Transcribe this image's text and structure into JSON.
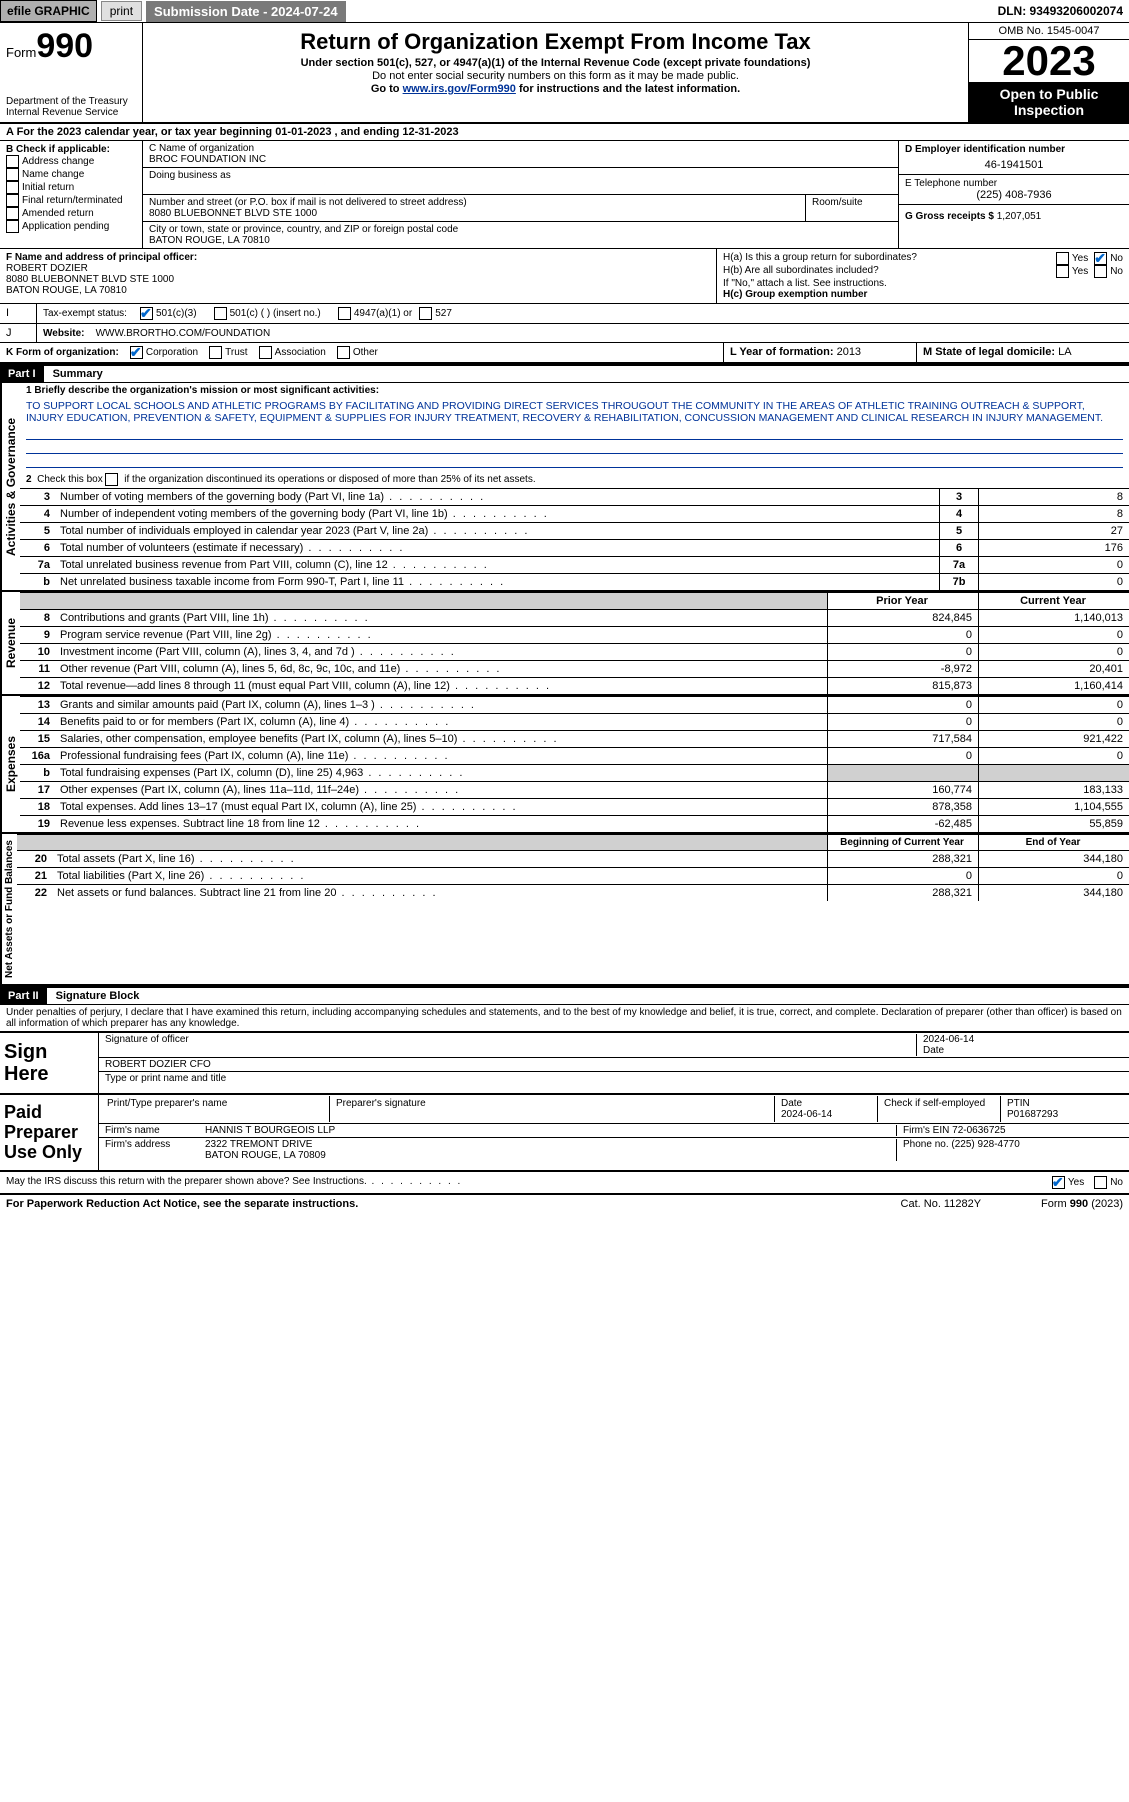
{
  "topbar": {
    "efile": "efile GRAPHIC",
    "print": "print",
    "subdate_label": "Submission Date - 2024-07-24",
    "dln": "DLN: 93493206002074"
  },
  "header": {
    "form_label": "Form",
    "form_num": "990",
    "dept": "Department of the Treasury",
    "irs": "Internal Revenue Service",
    "title": "Return of Organization Exempt From Income Tax",
    "sub1": "Under section 501(c), 527, or 4947(a)(1) of the Internal Revenue Code (except private foundations)",
    "sub2": "Do not enter social security numbers on this form as it may be made public.",
    "goto_pre": "Go to ",
    "goto_link": "www.irs.gov/Form990",
    "goto_post": " for instructions and the latest information.",
    "omb": "OMB No. 1545-0047",
    "year": "2023",
    "open": "Open to Public Inspection"
  },
  "rowA": "A For the 2023 calendar year, or tax year beginning 01-01-2023   , and ending 12-31-2023",
  "boxB": {
    "label": "B Check if applicable:",
    "items": [
      "Address change",
      "Name change",
      "Initial return",
      "Final return/terminated",
      "Amended return",
      "Application pending"
    ]
  },
  "boxC": {
    "label": "C Name of organization",
    "name": "BROC FOUNDATION INC",
    "dba_label": "Doing business as",
    "addr_label": "Number and street (or P.O. box if mail is not delivered to street address)",
    "room_label": "Room/suite",
    "addr": "8080 BLUEBONNET BLVD STE 1000",
    "city_label": "City or town, state or province, country, and ZIP or foreign postal code",
    "city": "BATON ROUGE, LA  70810"
  },
  "boxD": {
    "label": "D Employer identification number",
    "value": "46-1941501"
  },
  "boxE": {
    "label": "E Telephone number",
    "value": "(225) 408-7936"
  },
  "boxG": {
    "label": "G Gross receipts $",
    "value": "1,207,051"
  },
  "boxF": {
    "label": "F  Name and address of principal officer:",
    "name": "ROBERT DOZIER",
    "addr1": "8080 BLUEBONNET BLVD STE 1000",
    "addr2": "BATON ROUGE, LA  70810"
  },
  "boxH": {
    "ha": "H(a)  Is this a group return for subordinates?",
    "hb": "H(b)  Are all subordinates included?",
    "hb_note": "If \"No,\" attach a list. See instructions.",
    "hc": "H(c)  Group exemption number",
    "yes": "Yes",
    "no": "No"
  },
  "boxI": {
    "label": "Tax-exempt status:",
    "opts": [
      "501(c)(3)",
      "501(c) (  ) (insert no.)",
      "4947(a)(1) or",
      "527"
    ]
  },
  "boxJ": {
    "label": "Website:",
    "value": "WWW.BRORTHO.COM/FOUNDATION"
  },
  "boxK": {
    "label": "K Form of organization:",
    "opts": [
      "Corporation",
      "Trust",
      "Association",
      "Other"
    ]
  },
  "boxL": {
    "label": "L Year of formation:",
    "value": "2013"
  },
  "boxM": {
    "label": "M State of legal domicile:",
    "value": "LA"
  },
  "part1": {
    "hdr": "Part I",
    "title": "Summary"
  },
  "summary": {
    "q1_label": "1   Briefly describe the organization's mission or most significant activities:",
    "mission": "TO SUPPORT LOCAL SCHOOLS AND ATHLETIC PROGRAMS BY FACILITATING AND PROVIDING DIRECT SERVICES THROUGOUT THE COMMUNITY IN THE AREAS OF ATHLETIC TRAINING OUTREACH & SUPPORT, INJURY EDUCATION, PREVENTION & SAFETY, EQUIPMENT & SUPPLIES FOR INJURY TREATMENT, RECOVERY & REHABILITATION, CONCUSSION MANAGEMENT AND CLINICAL RESEARCH IN INJURY MANAGEMENT.",
    "q2": "2    Check this box      if the organization discontinued its operations or disposed of more than 25% of its net assets.",
    "lines_gov": [
      {
        "n": "3",
        "t": "Number of voting members of the governing body (Part VI, line 1a)",
        "b": "3",
        "v": "8"
      },
      {
        "n": "4",
        "t": "Number of independent voting members of the governing body (Part VI, line 1b)",
        "b": "4",
        "v": "8"
      },
      {
        "n": "5",
        "t": "Total number of individuals employed in calendar year 2023 (Part V, line 2a)",
        "b": "5",
        "v": "27"
      },
      {
        "n": "6",
        "t": "Total number of volunteers (estimate if necessary)",
        "b": "6",
        "v": "176"
      },
      {
        "n": "7a",
        "t": "Total unrelated business revenue from Part VIII, column (C), line 12",
        "b": "7a",
        "v": "0"
      },
      {
        "n": "b",
        "t": "Net unrelated business taxable income from Form 990-T, Part I, line 11",
        "b": "7b",
        "v": "0"
      }
    ],
    "col_prior": "Prior Year",
    "col_curr": "Current Year",
    "lines_rev": [
      {
        "n": "8",
        "t": "Contributions and grants (Part VIII, line 1h)",
        "p": "824,845",
        "c": "1,140,013"
      },
      {
        "n": "9",
        "t": "Program service revenue (Part VIII, line 2g)",
        "p": "0",
        "c": "0"
      },
      {
        "n": "10",
        "t": "Investment income (Part VIII, column (A), lines 3, 4, and 7d )",
        "p": "0",
        "c": "0"
      },
      {
        "n": "11",
        "t": "Other revenue (Part VIII, column (A), lines 5, 6d, 8c, 9c, 10c, and 11e)",
        "p": "-8,972",
        "c": "20,401"
      },
      {
        "n": "12",
        "t": "Total revenue—add lines 8 through 11 (must equal Part VIII, column (A), line 12)",
        "p": "815,873",
        "c": "1,160,414"
      }
    ],
    "lines_exp": [
      {
        "n": "13",
        "t": "Grants and similar amounts paid (Part IX, column (A), lines 1–3 )",
        "p": "0",
        "c": "0"
      },
      {
        "n": "14",
        "t": "Benefits paid to or for members (Part IX, column (A), line 4)",
        "p": "0",
        "c": "0"
      },
      {
        "n": "15",
        "t": "Salaries, other compensation, employee benefits (Part IX, column (A), lines 5–10)",
        "p": "717,584",
        "c": "921,422"
      },
      {
        "n": "16a",
        "t": "Professional fundraising fees (Part IX, column (A), line 11e)",
        "p": "0",
        "c": "0"
      },
      {
        "n": "b",
        "t": "Total fundraising expenses (Part IX, column (D), line 25) 4,963",
        "p": "",
        "c": "",
        "gray": true
      },
      {
        "n": "17",
        "t": "Other expenses (Part IX, column (A), lines 11a–11d, 11f–24e)",
        "p": "160,774",
        "c": "183,133"
      },
      {
        "n": "18",
        "t": "Total expenses. Add lines 13–17 (must equal Part IX, column (A), line 25)",
        "p": "878,358",
        "c": "1,104,555"
      },
      {
        "n": "19",
        "t": "Revenue less expenses. Subtract line 18 from line 12",
        "p": "-62,485",
        "c": "55,859"
      }
    ],
    "col_begin": "Beginning of Current Year",
    "col_end": "End of Year",
    "lines_net": [
      {
        "n": "20",
        "t": "Total assets (Part X, line 16)",
        "p": "288,321",
        "c": "344,180"
      },
      {
        "n": "21",
        "t": "Total liabilities (Part X, line 26)",
        "p": "0",
        "c": "0"
      },
      {
        "n": "22",
        "t": "Net assets or fund balances. Subtract line 21 from line 20",
        "p": "288,321",
        "c": "344,180"
      }
    ]
  },
  "part2": {
    "hdr": "Part II",
    "title": "Signature Block"
  },
  "penalties": "Under penalties of perjury, I declare that I have examined this return, including accompanying schedules and statements, and to the best of my knowledge and belief, it is true, correct, and complete. Declaration of preparer (other than officer) is based on all information of which preparer has any knowledge.",
  "sign": {
    "here": "Sign Here",
    "sig_label": "Signature of officer",
    "name": "ROBERT DOZIER  CFO",
    "name_label": "Type or print name and title",
    "date_label": "Date",
    "date": "2024-06-14"
  },
  "paid": {
    "label": "Paid Preparer Use Only",
    "prep_name_label": "Print/Type preparer's name",
    "prep_sig_label": "Preparer's signature",
    "date_label": "Date",
    "date": "2024-06-14",
    "check_label": "Check        if self-employed",
    "ptin_label": "PTIN",
    "ptin": "P01687293",
    "firm_name_label": "Firm's name",
    "firm_name": "HANNIS T BOURGEOIS LLP",
    "firm_ein_label": "Firm's EIN",
    "firm_ein": "72-0636725",
    "firm_addr_label": "Firm's address",
    "firm_addr1": "2322 TREMONT DRIVE",
    "firm_addr2": "BATON ROUGE, LA  70809",
    "phone_label": "Phone no.",
    "phone": "(225) 928-4770"
  },
  "discuss": {
    "q": "May the IRS discuss this return with the preparer shown above? See Instructions.",
    "yes": "Yes",
    "no": "No"
  },
  "footer": {
    "left": "For Paperwork Reduction Act Notice, see the separate instructions.",
    "mid": "Cat. No. 11282Y",
    "right_pre": "Form ",
    "right_form": "990",
    "right_post": " (2023)"
  },
  "tabs": {
    "gov": "Activities & Governance",
    "rev": "Revenue",
    "exp": "Expenses",
    "net": "Net Assets or Fund Balances"
  }
}
